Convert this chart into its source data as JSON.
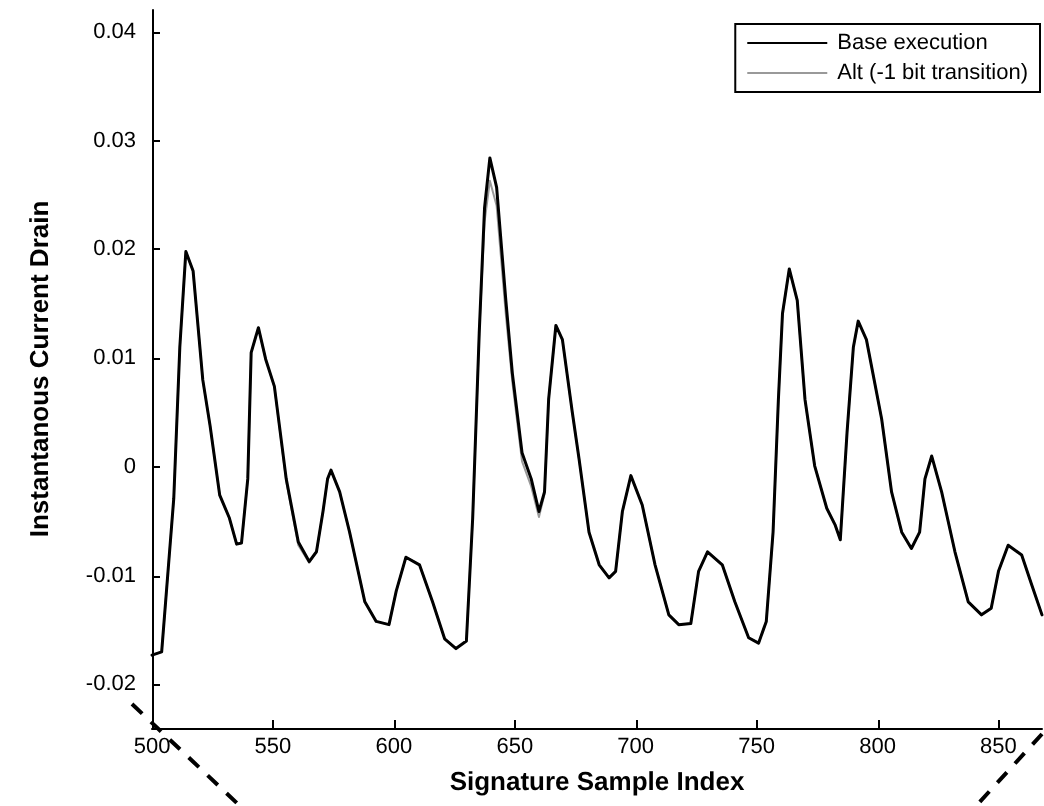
{
  "chart_data": {
    "type": "line",
    "xlabel": "Signature Sample Index",
    "ylabel": "Instantanous Current Drain",
    "xlim": [
      500,
      868
    ],
    "xticks": [
      500,
      550,
      600,
      650,
      700,
      750,
      800,
      850
    ],
    "ylim": [
      -0.024,
      0.042
    ],
    "yticks": [
      -0.02,
      -0.01,
      0,
      0.01,
      0.02,
      0.03,
      0.04
    ],
    "grid": false,
    "legend": "top right",
    "marker": "none",
    "line_style": "solid",
    "x": [
      500,
      504,
      509,
      511.5,
      514,
      517,
      521,
      524,
      528,
      532,
      535,
      537,
      539.6,
      541,
      544,
      547,
      550.6,
      555.5,
      560.5,
      565,
      568,
      570.7,
      572.6,
      574,
      577.6,
      581.7,
      588,
      592.7,
      598,
      601,
      605,
      610.6,
      616,
      621,
      625.7,
      630,
      632.6,
      635.3,
      637.5,
      639.7,
      642.5,
      646.3,
      649,
      653,
      656.8,
      660,
      662.3,
      664,
      667,
      669.7,
      673.8,
      676.6,
      680.7,
      684.9,
      689,
      691.7,
      694.5,
      698,
      702.7,
      708,
      713.7,
      717.8,
      722.8,
      726,
      729.7,
      735.8,
      741,
      746.7,
      750.8,
      754,
      756.8,
      759,
      760.7,
      763.5,
      766.8,
      770,
      774,
      779,
      782.4,
      784.6,
      787.4,
      790,
      792,
      795.4,
      801.7,
      805.8,
      810,
      814,
      817.4,
      819.6,
      822.4,
      826.5,
      832,
      837.5,
      843,
      847,
      850,
      854,
      859.6,
      863.7,
      868
    ],
    "series": [
      {
        "name": "Base execution",
        "color": "#000000",
        "values": [
          -0.0173,
          -0.017,
          -0.0029,
          0.011,
          0.0198,
          0.018,
          0.008,
          0.0038,
          -0.0026,
          -0.0047,
          -0.0071,
          -0.007,
          -0.0011,
          0.0105,
          0.0128,
          0.0099,
          0.0074,
          -0.0011,
          -0.0069,
          -0.0087,
          -0.0078,
          -0.0041,
          -0.0011,
          -0.0003,
          -0.0023,
          -0.006,
          -0.0124,
          -0.0142,
          -0.0145,
          -0.0114,
          -0.0083,
          -0.009,
          -0.0124,
          -0.0158,
          -0.0167,
          -0.016,
          -0.0047,
          0.0123,
          0.0238,
          0.0284,
          0.0257,
          0.0153,
          0.0086,
          0.0013,
          -0.0011,
          -0.0041,
          -0.0023,
          0.0062,
          0.013,
          0.0117,
          0.005,
          0.0007,
          -0.006,
          -0.009,
          -0.0102,
          -0.0096,
          -0.0041,
          -0.0008,
          -0.0035,
          -0.009,
          -0.0136,
          -0.0145,
          -0.0144,
          -0.0096,
          -0.0078,
          -0.009,
          -0.0124,
          -0.0157,
          -0.0162,
          -0.0142,
          -0.006,
          0.0062,
          0.0141,
          0.0182,
          0.0153,
          0.0062,
          0.0001,
          -0.0038,
          -0.0053,
          -0.0067,
          0.0032,
          0.011,
          0.0134,
          0.0117,
          0.0044,
          -0.0023,
          -0.006,
          -0.0075,
          -0.006,
          -0.0011,
          0.001,
          -0.0023,
          -0.0078,
          -0.0124,
          -0.0136,
          -0.013,
          -0.0096,
          -0.0072,
          -0.0081,
          -0.0108,
          -0.0136
        ]
      },
      {
        "name": "Alt (-1 bit transition)",
        "color": "#999999",
        "values": [
          -0.0173,
          -0.017,
          -0.0029,
          0.011,
          0.0198,
          0.018,
          0.008,
          0.0038,
          -0.0026,
          -0.0047,
          -0.0071,
          -0.007,
          -0.0011,
          0.0105,
          0.0128,
          0.0099,
          0.0074,
          -0.0013,
          -0.0072,
          -0.0088,
          -0.0078,
          -0.0041,
          -0.0011,
          -0.0003,
          -0.0023,
          -0.006,
          -0.0124,
          -0.0142,
          -0.0145,
          -0.0114,
          -0.0083,
          -0.009,
          -0.0124,
          -0.0158,
          -0.0167,
          -0.016,
          -0.0047,
          0.0123,
          0.0225,
          0.0263,
          0.024,
          0.014,
          0.0078,
          0.0005,
          -0.0018,
          -0.0046,
          -0.0025,
          0.0062,
          0.013,
          0.0117,
          0.005,
          0.0007,
          -0.006,
          -0.009,
          -0.0102,
          -0.0096,
          -0.0041,
          -0.0008,
          -0.0035,
          -0.009,
          -0.0136,
          -0.0145,
          -0.0144,
          -0.0096,
          -0.0078,
          -0.009,
          -0.0124,
          -0.0157,
          -0.0162,
          -0.0142,
          -0.006,
          0.0062,
          0.0141,
          0.0182,
          0.0153,
          0.0062,
          0.0001,
          -0.0038,
          -0.0053,
          -0.0067,
          0.0032,
          0.011,
          0.0134,
          0.0117,
          0.0044,
          -0.0023,
          -0.006,
          -0.0075,
          -0.006,
          -0.0011,
          0.001,
          -0.0023,
          -0.0078,
          -0.0124,
          -0.0136,
          -0.013,
          -0.0096,
          -0.0072,
          -0.0081,
          -0.0108,
          -0.0136
        ]
      }
    ]
  }
}
